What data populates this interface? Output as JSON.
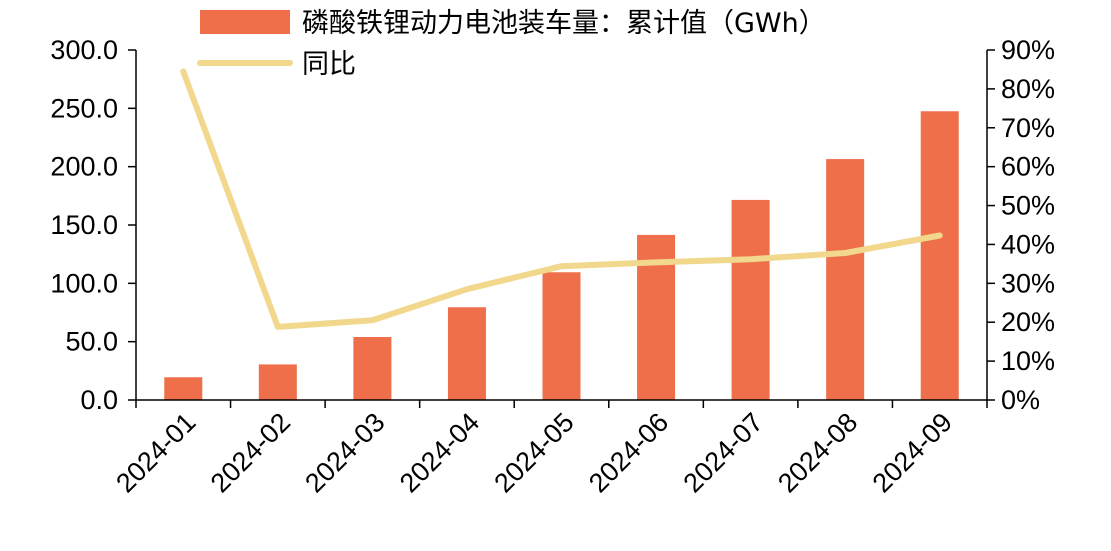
{
  "chart_data": {
    "type": "bar",
    "categories": [
      "2024-01",
      "2024-02",
      "2024-03",
      "2024-04",
      "2024-05",
      "2024-06",
      "2024-07",
      "2024-08",
      "2024-09"
    ],
    "series": [
      {
        "name": "磷酸铁锂动力电池装车量：累计值（GWh）",
        "type": "bar",
        "axis": "left",
        "color": "#EE6F4A",
        "values": [
          19.5,
          30.5,
          54.0,
          79.5,
          109.5,
          141.5,
          171.5,
          206.5,
          247.5
        ]
      },
      {
        "name": "同比",
        "type": "line",
        "axis": "right",
        "color": "#F2D88C",
        "values": [
          84.5,
          18.8,
          20.5,
          28.5,
          34.4,
          35.4,
          36.2,
          37.8,
          42.3
        ]
      }
    ],
    "y_left": {
      "min": 0,
      "max": 300,
      "ticks": [
        "0.0",
        "50.0",
        "100.0",
        "150.0",
        "200.0",
        "250.0",
        "300.0"
      ]
    },
    "y_right": {
      "min": 0,
      "max": 90,
      "ticks": [
        "0%",
        "10%",
        "20%",
        "30%",
        "40%",
        "50%",
        "60%",
        "70%",
        "80%",
        "90%"
      ]
    },
    "legend": {
      "placement": "top-center"
    },
    "grid": false
  }
}
